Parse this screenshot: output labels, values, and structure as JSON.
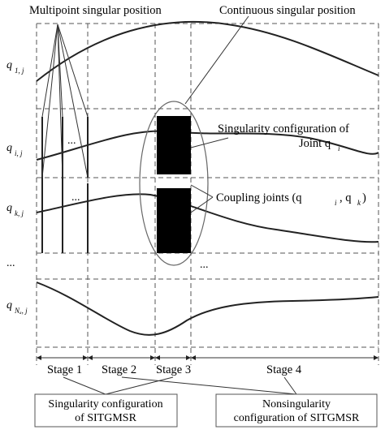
{
  "annotations": {
    "multipoint": "Multipoint singular position",
    "continuous": "Continuous singular position",
    "singularity_joint_line1": "Singularity configuration of",
    "singularity_joint_line2": "Joint q",
    "singularity_joint_sub": "i",
    "coupling": "Coupling joints (q",
    "coupling_sub_i": "i",
    "coupling_mid": ", q",
    "coupling_sub_k": "k",
    "coupling_end": ")"
  },
  "rows": [
    {
      "main": "q",
      "sub": "1, j"
    },
    {
      "main": "q",
      "sub": "i, j"
    },
    {
      "main": "q",
      "sub": "k, j"
    },
    {
      "main": "...",
      "sub": ""
    },
    {
      "main": "q",
      "sub": "Nₐ, j"
    }
  ],
  "ellipses": {
    "row_i": "...",
    "row_k": "...",
    "row_dots_left": "...",
    "row_dots_mid": "..."
  },
  "stages": [
    "Stage 1",
    "Stage 2",
    "Stage 3",
    "Stage 4"
  ],
  "boxes": {
    "singular_line1": "Singularity configuration",
    "singular_line2": "of SITGMSR",
    "nonsingular_line1": "Nonsingularity",
    "nonsingular_line2": "configuration of SITGMSR"
  }
}
